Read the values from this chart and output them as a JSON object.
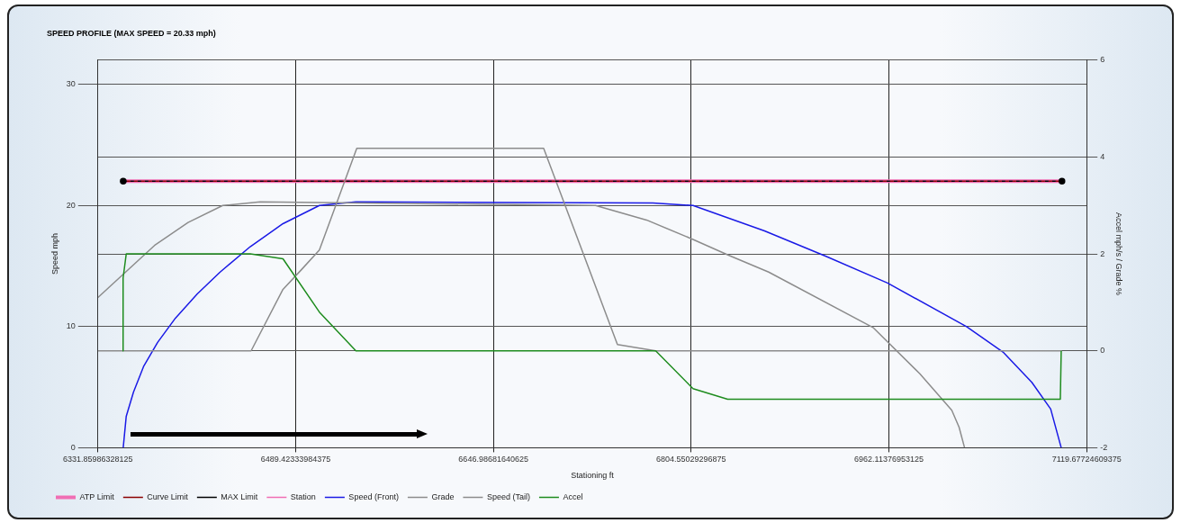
{
  "chart_data": {
    "type": "line",
    "title": "SPEED PROFILE (MAX SPEED = 20.33 mph)",
    "xlabel": "Stationing ft",
    "ylabel": "Speed mph",
    "y2label": "Accel mph/s / Grade %",
    "xlim": [
      6331.85986328125,
      7119.67724609375
    ],
    "xticks": [
      6331.85986328125,
      6489.42333984375,
      6646.98681640625,
      6804.55029296875,
      6962.11376953125,
      7119.67724609375
    ],
    "ylim": [
      0,
      32
    ],
    "yticks": [
      0,
      10,
      20,
      30
    ],
    "y2lim": [
      -2,
      6
    ],
    "y2ticks": [
      -2,
      0,
      2,
      4,
      6
    ],
    "grid": true,
    "legend": "bottom left",
    "series": [
      {
        "name": "ATP Limit",
        "color": "#f06eb4",
        "line_style": "solid",
        "x": [
          6352,
          7100
        ],
        "values": [
          22,
          22
        ]
      },
      {
        "name": "Curve Limit",
        "color": "#8b0000",
        "line_style": "dashed",
        "x": [
          6352,
          7100
        ],
        "values": [
          22,
          22
        ]
      },
      {
        "name": "MAX Limit",
        "color": "#000000",
        "line_style": "dashed",
        "marker": "circle",
        "x": [
          6352,
          7100
        ],
        "values": [
          22,
          22
        ]
      },
      {
        "name": "Station",
        "color": "#f06eb4",
        "marker": "circle"
      },
      {
        "name": "Speed (Front)",
        "color": "#1a1ae6",
        "x": [
          6352,
          6354.4,
          6360.2,
          6368.2,
          6379.4,
          6393.6,
          6411,
          6429.2,
          6453.2,
          6479.3,
          6508.3,
          6537.4,
          6774,
          6806,
          6863,
          6912,
          6961,
          7024,
          7053,
          7076,
          7091,
          7099.4
        ],
        "values": [
          0,
          2.6,
          4.6,
          6.7,
          8.7,
          10.7,
          12.7,
          14.5,
          16.6,
          18.5,
          20,
          20.3,
          20.2,
          20,
          17.9,
          15.8,
          13.6,
          10,
          7.9,
          5.4,
          3.2,
          0
        ]
      },
      {
        "name": "Grade",
        "color": "#8c8c8c",
        "axis": "y2",
        "x": [
          6331.86,
          6453.9,
          6479.3,
          6493.8,
          6508.3,
          6538.1,
          6687,
          6745.8,
          6776.3,
          7100
        ],
        "values": [
          0,
          0,
          1.27,
          1.67,
          2.08,
          4.18,
          4.18,
          0.13,
          0,
          0
        ]
      },
      {
        "name": "Speed (Tail)",
        "color": "#8c8c8c",
        "x": [
          6331.86,
          6376.9,
          6403.7,
          6431.3,
          6461.1,
          6728.3,
          6769,
          6806,
          6834.3,
          6866.3,
          6949.8,
          6986.8,
          7012.2,
          7018,
          7022.4
        ],
        "values": [
          12.4,
          16.7,
          18.6,
          20,
          20.3,
          20,
          18.8,
          17.2,
          15.9,
          14.5,
          9.9,
          6.1,
          3.1,
          1.7,
          0
        ]
      },
      {
        "name": "Accel",
        "color": "#1e8c1e",
        "axis": "y2",
        "x": [
          6351.5,
          6351.9,
          6354.4,
          6453.2,
          6479.3,
          6508.3,
          6537.4,
          6776.3,
          6806,
          6833.6,
          7098.7,
          7099.4
        ],
        "values": [
          0,
          1.5,
          2,
          2,
          1.9,
          0.8,
          0,
          0,
          -0.78,
          -1,
          -1,
          0
        ]
      }
    ]
  }
}
